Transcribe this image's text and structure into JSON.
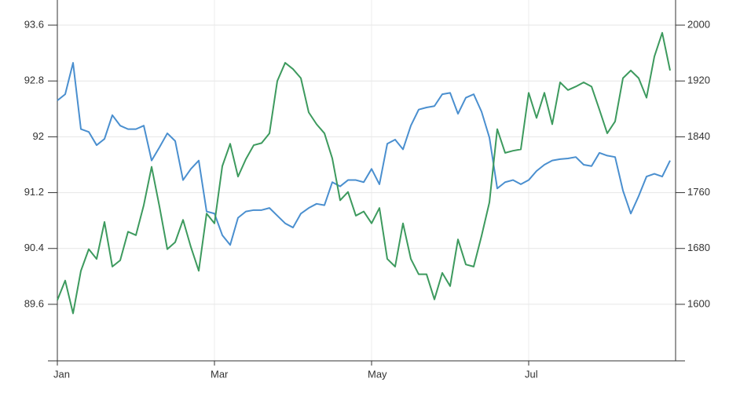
{
  "chart_data": {
    "type": "line",
    "x": [
      0,
      1,
      2,
      3,
      4,
      5,
      6,
      7,
      8,
      9,
      10,
      11,
      12,
      13,
      14,
      15,
      16,
      17,
      18,
      19,
      20,
      21,
      22,
      23,
      24,
      25,
      26,
      27,
      28,
      29,
      30,
      31,
      32,
      33,
      34,
      35,
      36,
      37,
      38,
      39,
      40,
      41,
      42,
      43,
      44,
      45,
      46,
      47,
      48,
      49,
      50,
      51,
      52,
      53,
      54,
      55,
      56,
      57,
      58,
      59,
      60,
      61,
      62,
      63,
      64,
      65,
      66,
      67,
      68,
      69,
      70,
      71,
      72,
      73,
      74,
      75,
      76,
      77,
      78
    ],
    "xlim": [
      0,
      78.7
    ],
    "xticks": [
      {
        "value": 0,
        "label": "Jan"
      },
      {
        "value": 20,
        "label": "Mar"
      },
      {
        "value": 40,
        "label": "May"
      },
      {
        "value": 60,
        "label": "Jul"
      }
    ],
    "ylim": [
      88.79,
      93.96
    ],
    "yticks": [
      89.6,
      90.4,
      91.2,
      92,
      92.8,
      93.6
    ],
    "y2lim": [
      1519,
      2036
    ],
    "y2ticks": [
      1600,
      1680,
      1760,
      1840,
      1920,
      2000
    ],
    "grid": true,
    "series": [
      {
        "color": "#4a8fcf",
        "values": [
          92.52,
          92.61,
          93.06,
          92.11,
          92.07,
          91.88,
          91.97,
          92.31,
          92.16,
          92.11,
          92.11,
          92.16,
          91.66,
          91.85,
          92.05,
          91.94,
          91.38,
          91.54,
          91.66,
          90.93,
          90.9,
          90.59,
          90.45,
          90.84,
          90.93,
          90.95,
          90.95,
          90.98,
          90.87,
          90.76,
          90.7,
          90.9,
          90.98,
          91.04,
          91.02,
          91.35,
          91.29,
          91.38,
          91.38,
          91.35,
          91.54,
          91.32,
          91.9,
          91.96,
          91.82,
          92.16,
          92.39,
          92.42,
          92.44,
          92.61,
          92.63,
          92.33,
          92.56,
          92.61,
          92.36,
          91.99,
          91.26,
          91.35,
          91.38,
          91.32,
          91.38,
          91.51,
          91.6,
          91.66,
          91.68,
          91.69,
          91.71,
          91.6,
          91.58,
          91.77,
          91.73,
          91.71,
          91.23,
          90.9,
          91.15,
          91.43,
          91.47,
          91.43,
          91.66
        ]
      },
      {
        "color": "#3d9a5e",
        "axis": "y2",
        "values": [
          1606,
          1634,
          1587,
          1648,
          1679,
          1665,
          1718,
          1654,
          1663,
          1704,
          1699,
          1742,
          1797,
          1740,
          1679,
          1689,
          1721,
          1682,
          1648,
          1730,
          1716,
          1798,
          1830,
          1783,
          1808,
          1828,
          1831,
          1845,
          1920,
          1946,
          1937,
          1924,
          1875,
          1858,
          1845,
          1809,
          1749,
          1761,
          1727,
          1733,
          1716,
          1738,
          1665,
          1654,
          1716,
          1665,
          1643,
          1643,
          1607,
          1645,
          1626,
          1693,
          1657,
          1654,
          1698,
          1746,
          1851,
          1817,
          1820,
          1822,
          1903,
          1867,
          1903,
          1858,
          1918,
          1907,
          1912,
          1918,
          1912,
          1879,
          1845,
          1862,
          1924,
          1935,
          1924,
          1896,
          1955,
          1989,
          1935
        ]
      }
    ]
  }
}
